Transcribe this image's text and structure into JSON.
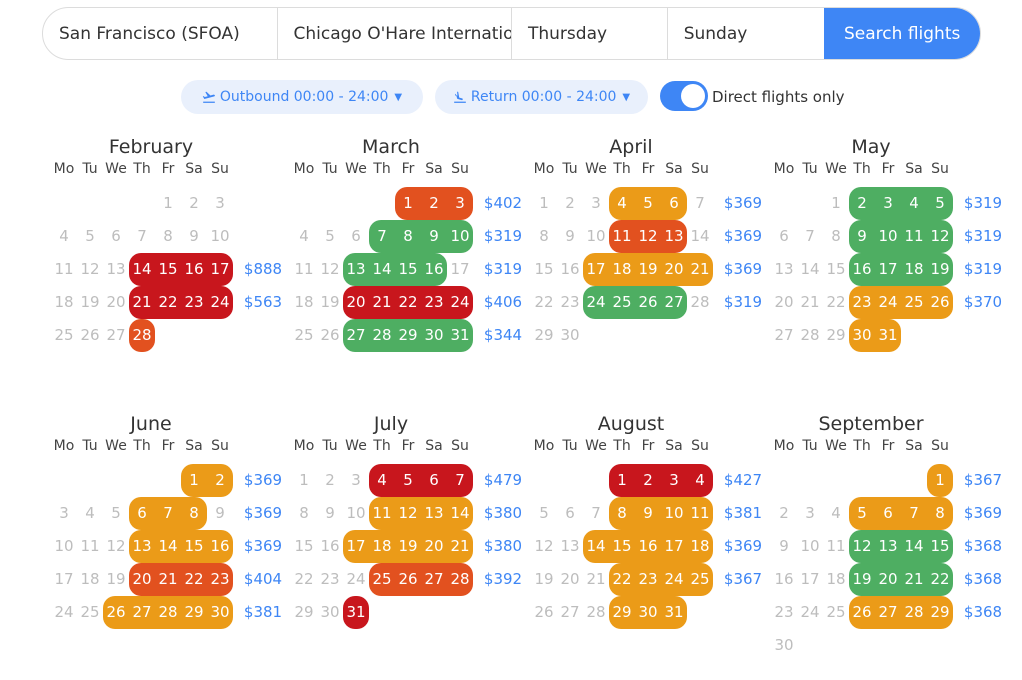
{
  "search": {
    "origin": "San Francisco (SFOA)",
    "destination": "Chicago O'Hare International",
    "depart_day": "Thursday",
    "return_day": "Sunday",
    "button": "Search flights"
  },
  "filters": {
    "outbound": "Outbound 00:00 - 24:00",
    "return": "Return 00:00 - 24:00",
    "direct_label": "Direct flights only",
    "direct_on": true
  },
  "dow": [
    "Mo",
    "Tu",
    "We",
    "Th",
    "Fr",
    "Sa",
    "Su"
  ],
  "colors": {
    "red": "#c8161d",
    "orange": "#e2511f",
    "amber": "#eb9b18",
    "green": "#4eae62",
    "grey": "#bdbdbd",
    "price": "#3e86f5"
  },
  "months": [
    {
      "name": "February",
      "weeks": [
        {
          "days": [
            null,
            null,
            null,
            null,
            "1",
            "2",
            "3"
          ],
          "colors": [
            null,
            null,
            null,
            null,
            null,
            null,
            null
          ],
          "price": ""
        },
        {
          "days": [
            "4",
            "5",
            "6",
            "7",
            "8",
            "9",
            "10"
          ],
          "colors": [
            null,
            null,
            null,
            null,
            null,
            null,
            null
          ],
          "price": ""
        },
        {
          "days": [
            "11",
            "12",
            "13",
            "14",
            "15",
            "16",
            "17"
          ],
          "colors": [
            null,
            null,
            null,
            "red",
            "red",
            "red",
            "red"
          ],
          "price": "$888"
        },
        {
          "days": [
            "18",
            "19",
            "20",
            "21",
            "22",
            "23",
            "24"
          ],
          "colors": [
            null,
            null,
            null,
            "red",
            "red",
            "red",
            "red"
          ],
          "price": "$563"
        },
        {
          "days": [
            "25",
            "26",
            "27",
            "28",
            null,
            null,
            null
          ],
          "colors": [
            null,
            null,
            null,
            "orange",
            null,
            null,
            null
          ],
          "price": ""
        }
      ]
    },
    {
      "name": "March",
      "weeks": [
        {
          "days": [
            null,
            null,
            null,
            null,
            "1",
            "2",
            "3"
          ],
          "colors": [
            null,
            null,
            null,
            null,
            "orange",
            "orange",
            "orange"
          ],
          "price": "$402"
        },
        {
          "days": [
            "4",
            "5",
            "6",
            "7",
            "8",
            "9",
            "10"
          ],
          "colors": [
            null,
            null,
            null,
            "green",
            "green",
            "green",
            "green"
          ],
          "price": "$319"
        },
        {
          "days": [
            "11",
            "12",
            "13",
            "14",
            "15",
            "16",
            "17"
          ],
          "colors": [
            null,
            null,
            "green",
            "green",
            "green",
            "green",
            null
          ],
          "price": "$319"
        },
        {
          "days": [
            "18",
            "19",
            "20",
            "21",
            "22",
            "23",
            "24"
          ],
          "colors": [
            null,
            null,
            "red",
            "red",
            "red",
            "red",
            "red"
          ],
          "price": "$406"
        },
        {
          "days": [
            "25",
            "26",
            "27",
            "28",
            "29",
            "30",
            "31"
          ],
          "colors": [
            null,
            null,
            "green",
            "green",
            "green",
            "green",
            "green"
          ],
          "price": "$344"
        }
      ]
    },
    {
      "name": "April",
      "weeks": [
        {
          "days": [
            "1",
            "2",
            "3",
            "4",
            "5",
            "6",
            "7"
          ],
          "colors": [
            null,
            null,
            null,
            "amber",
            "amber",
            "amber",
            null
          ],
          "price": "$369"
        },
        {
          "days": [
            "8",
            "9",
            "10",
            "11",
            "12",
            "13",
            "14"
          ],
          "colors": [
            null,
            null,
            null,
            "orange",
            "orange",
            "orange",
            null
          ],
          "price": "$369"
        },
        {
          "days": [
            "15",
            "16",
            "17",
            "18",
            "19",
            "20",
            "21"
          ],
          "colors": [
            null,
            null,
            "amber",
            "amber",
            "amber",
            "amber",
            "amber"
          ],
          "price": "$369"
        },
        {
          "days": [
            "22",
            "23",
            "24",
            "25",
            "26",
            "27",
            "28"
          ],
          "colors": [
            null,
            null,
            "green",
            "green",
            "green",
            "green",
            null
          ],
          "price": "$319"
        },
        {
          "days": [
            "29",
            "30",
            null,
            null,
            null,
            null,
            null
          ],
          "colors": [
            null,
            null,
            null,
            null,
            null,
            null,
            null
          ],
          "price": ""
        }
      ]
    },
    {
      "name": "May",
      "weeks": [
        {
          "days": [
            null,
            null,
            "1",
            "2",
            "3",
            "4",
            "5"
          ],
          "colors": [
            null,
            null,
            null,
            "green",
            "green",
            "green",
            "green"
          ],
          "price": "$319"
        },
        {
          "days": [
            "6",
            "7",
            "8",
            "9",
            "10",
            "11",
            "12"
          ],
          "colors": [
            null,
            null,
            null,
            "green",
            "green",
            "green",
            "green"
          ],
          "price": "$319"
        },
        {
          "days": [
            "13",
            "14",
            "15",
            "16",
            "17",
            "18",
            "19"
          ],
          "colors": [
            null,
            null,
            null,
            "green",
            "green",
            "green",
            "green"
          ],
          "price": "$319"
        },
        {
          "days": [
            "20",
            "21",
            "22",
            "23",
            "24",
            "25",
            "26"
          ],
          "colors": [
            null,
            null,
            null,
            "amber",
            "amber",
            "amber",
            "amber"
          ],
          "price": "$370"
        },
        {
          "days": [
            "27",
            "28",
            "29",
            "30",
            "31",
            null,
            null
          ],
          "colors": [
            null,
            null,
            null,
            "amber",
            "amber",
            null,
            null
          ],
          "price": ""
        }
      ]
    },
    {
      "name": "June",
      "weeks": [
        {
          "days": [
            null,
            null,
            null,
            null,
            null,
            "1",
            "2"
          ],
          "colors": [
            null,
            null,
            null,
            null,
            null,
            "amber",
            "amber"
          ],
          "price": "$369"
        },
        {
          "days": [
            "3",
            "4",
            "5",
            "6",
            "7",
            "8",
            "9"
          ],
          "colors": [
            null,
            null,
            null,
            "amber",
            "amber",
            "amber",
            null
          ],
          "price": "$369"
        },
        {
          "days": [
            "10",
            "11",
            "12",
            "13",
            "14",
            "15",
            "16"
          ],
          "colors": [
            null,
            null,
            null,
            "amber",
            "amber",
            "amber",
            "amber"
          ],
          "price": "$369"
        },
        {
          "days": [
            "17",
            "18",
            "19",
            "20",
            "21",
            "22",
            "23"
          ],
          "colors": [
            null,
            null,
            null,
            "orange",
            "orange",
            "orange",
            "orange"
          ],
          "price": "$404"
        },
        {
          "days": [
            "24",
            "25",
            "26",
            "27",
            "28",
            "29",
            "30"
          ],
          "colors": [
            null,
            null,
            "amber",
            "amber",
            "amber",
            "amber",
            "amber"
          ],
          "price": "$381"
        }
      ]
    },
    {
      "name": "July",
      "weeks": [
        {
          "days": [
            "1",
            "2",
            "3",
            "4",
            "5",
            "6",
            "7"
          ],
          "colors": [
            null,
            null,
            null,
            "red",
            "red",
            "red",
            "red"
          ],
          "price": "$479"
        },
        {
          "days": [
            "8",
            "9",
            "10",
            "11",
            "12",
            "13",
            "14"
          ],
          "colors": [
            null,
            null,
            null,
            "amber",
            "amber",
            "amber",
            "amber"
          ],
          "price": "$380"
        },
        {
          "days": [
            "15",
            "16",
            "17",
            "18",
            "19",
            "20",
            "21"
          ],
          "colors": [
            null,
            null,
            "amber",
            "amber",
            "amber",
            "amber",
            "amber"
          ],
          "price": "$380"
        },
        {
          "days": [
            "22",
            "23",
            "24",
            "25",
            "26",
            "27",
            "28"
          ],
          "colors": [
            null,
            null,
            null,
            "orange",
            "orange",
            "orange",
            "orange"
          ],
          "price": "$392"
        },
        {
          "days": [
            "29",
            "30",
            "31",
            null,
            null,
            null,
            null
          ],
          "colors": [
            null,
            null,
            "red",
            null,
            null,
            null,
            null
          ],
          "price": ""
        }
      ]
    },
    {
      "name": "August",
      "weeks": [
        {
          "days": [
            null,
            null,
            null,
            "1",
            "2",
            "3",
            "4"
          ],
          "colors": [
            null,
            null,
            null,
            "red",
            "red",
            "red",
            "red"
          ],
          "price": "$427"
        },
        {
          "days": [
            "5",
            "6",
            "7",
            "8",
            "9",
            "10",
            "11"
          ],
          "colors": [
            null,
            null,
            null,
            "amber",
            "amber",
            "amber",
            "amber"
          ],
          "price": "$381"
        },
        {
          "days": [
            "12",
            "13",
            "14",
            "15",
            "16",
            "17",
            "18"
          ],
          "colors": [
            null,
            null,
            "amber",
            "amber",
            "amber",
            "amber",
            "amber"
          ],
          "price": "$369"
        },
        {
          "days": [
            "19",
            "20",
            "21",
            "22",
            "23",
            "24",
            "25"
          ],
          "colors": [
            null,
            null,
            null,
            "amber",
            "amber",
            "amber",
            "amber"
          ],
          "price": "$367"
        },
        {
          "days": [
            "26",
            "27",
            "28",
            "29",
            "30",
            "31",
            null
          ],
          "colors": [
            null,
            null,
            null,
            "amber",
            "amber",
            "amber",
            null
          ],
          "price": ""
        }
      ]
    },
    {
      "name": "September",
      "weeks": [
        {
          "days": [
            null,
            null,
            null,
            null,
            null,
            null,
            "1"
          ],
          "colors": [
            null,
            null,
            null,
            null,
            null,
            null,
            "amber"
          ],
          "price": "$367"
        },
        {
          "days": [
            "2",
            "3",
            "4",
            "5",
            "6",
            "7",
            "8"
          ],
          "colors": [
            null,
            null,
            null,
            "amber",
            "amber",
            "amber",
            "amber"
          ],
          "price": "$369"
        },
        {
          "days": [
            "9",
            "10",
            "11",
            "12",
            "13",
            "14",
            "15"
          ],
          "colors": [
            null,
            null,
            null,
            "green",
            "green",
            "green",
            "green"
          ],
          "price": "$368"
        },
        {
          "days": [
            "16",
            "17",
            "18",
            "19",
            "20",
            "21",
            "22"
          ],
          "colors": [
            null,
            null,
            null,
            "green",
            "green",
            "green",
            "green"
          ],
          "price": "$368"
        },
        {
          "days": [
            "23",
            "24",
            "25",
            "26",
            "27",
            "28",
            "29"
          ],
          "colors": [
            null,
            null,
            null,
            "amber",
            "amber",
            "amber",
            "amber"
          ],
          "price": "$368"
        },
        {
          "days": [
            "30",
            null,
            null,
            null,
            null,
            null,
            null
          ],
          "colors": [
            null,
            null,
            null,
            null,
            null,
            null,
            null
          ],
          "price": ""
        }
      ]
    }
  ]
}
